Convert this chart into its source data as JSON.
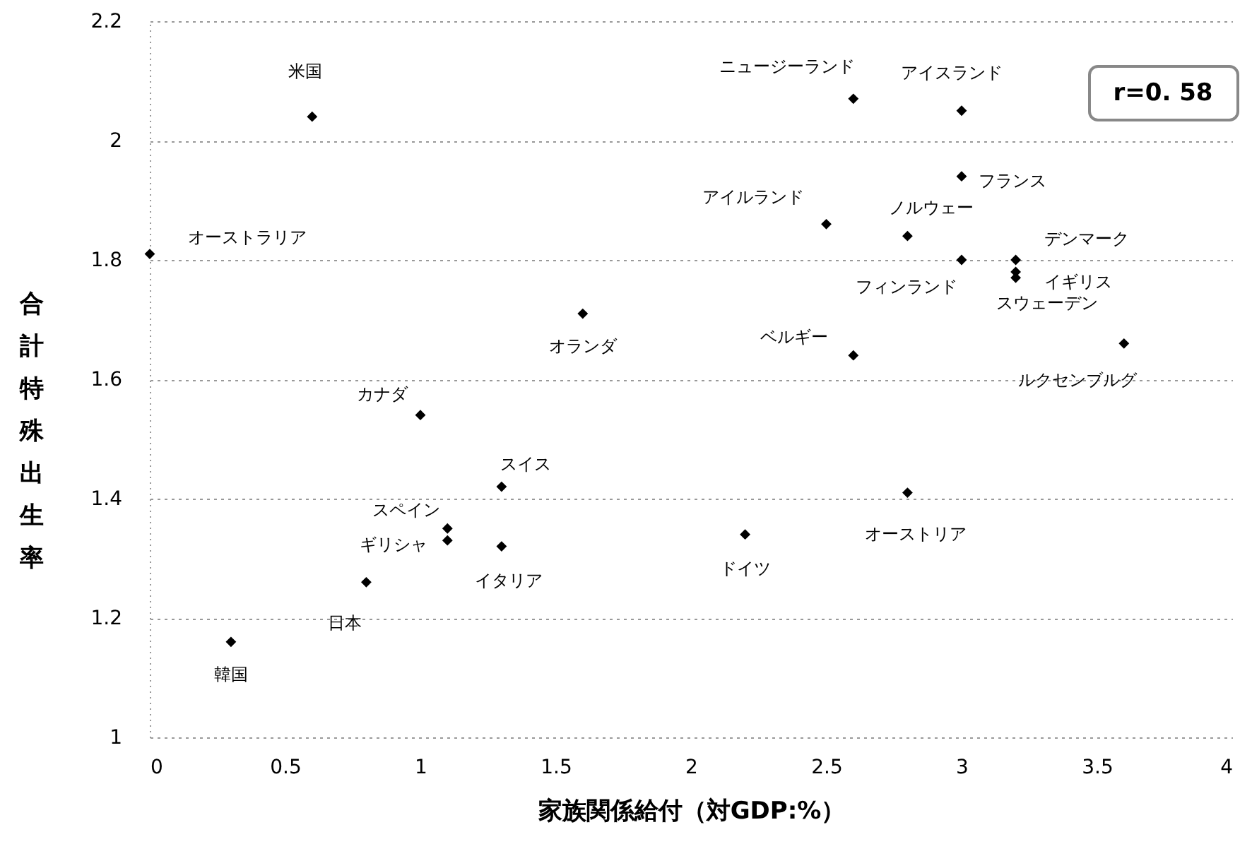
{
  "chart_data": {
    "type": "scatter",
    "xlabel": "家族関係給付（対GDP:%）",
    "ylabel": "合計特殊出生率",
    "series": [
      {
        "color": "#000000",
        "x": [
          0.6,
          0,
          1.6,
          1.0,
          1.3,
          1.1,
          1.1,
          1.3,
          0.8,
          0.3,
          2.2,
          2.8,
          2.6,
          3.0,
          3.0,
          2.5,
          2.8,
          3.0,
          3.2,
          3.2,
          3.2,
          2.6,
          3.6
        ],
        "values": [
          2.04,
          1.81,
          1.71,
          1.54,
          1.42,
          1.35,
          1.33,
          1.32,
          1.26,
          1.16,
          1.34,
          1.41,
          2.07,
          2.05,
          1.94,
          1.86,
          1.84,
          1.8,
          1.8,
          1.78,
          1.77,
          1.64,
          1.66
        ]
      }
    ],
    "xlim": [
      0,
      4
    ],
    "xticks": [
      0,
      0.5,
      1,
      1.5,
      2,
      2.5,
      3,
      3.5,
      4
    ],
    "ylim": [
      1,
      2.2
    ],
    "yticks": [
      1,
      1.2,
      1.4,
      1.6,
      1.8,
      2,
      2.2
    ],
    "grid": "y",
    "marker": "diamond",
    "annotations": [
      {
        "text": "米国",
        "x": 0.6,
        "y": 2.04
      },
      {
        "text": "オーストラリア",
        "x": 0,
        "y": 1.81
      },
      {
        "text": "オランダ",
        "x": 1.6,
        "y": 1.71
      },
      {
        "text": "カナダ",
        "x": 1.0,
        "y": 1.54
      },
      {
        "text": "スイス",
        "x": 1.3,
        "y": 1.42
      },
      {
        "text": "スペイン",
        "x": 1.1,
        "y": 1.35
      },
      {
        "text": "ギリシャ",
        "x": 1.1,
        "y": 1.33
      },
      {
        "text": "イタリア",
        "x": 1.3,
        "y": 1.32
      },
      {
        "text": "日本",
        "x": 0.8,
        "y": 1.26
      },
      {
        "text": "韓国",
        "x": 0.3,
        "y": 1.16
      },
      {
        "text": "ドイツ",
        "x": 2.2,
        "y": 1.34
      },
      {
        "text": "オーストリア",
        "x": 2.8,
        "y": 1.41
      },
      {
        "text": "ニュージーランド",
        "x": 2.6,
        "y": 2.07
      },
      {
        "text": "アイスランド",
        "x": 3.0,
        "y": 2.05
      },
      {
        "text": "フランス",
        "x": 3.0,
        "y": 1.94
      },
      {
        "text": "アイルランド",
        "x": 2.5,
        "y": 1.86
      },
      {
        "text": "ノルウェー",
        "x": 2.8,
        "y": 1.84
      },
      {
        "text": "フィンランド",
        "x": 3.0,
        "y": 1.8
      },
      {
        "text": "デンマーク",
        "x": 3.2,
        "y": 1.8
      },
      {
        "text": "イギリス",
        "x": 3.2,
        "y": 1.78
      },
      {
        "text": "スウェーデン",
        "x": 3.2,
        "y": 1.77
      },
      {
        "text": "ベルギー",
        "x": 2.6,
        "y": 1.64
      },
      {
        "text": "ルクセンブルグ",
        "x": 3.6,
        "y": 1.66
      },
      "r=0. 58"
    ]
  }
}
